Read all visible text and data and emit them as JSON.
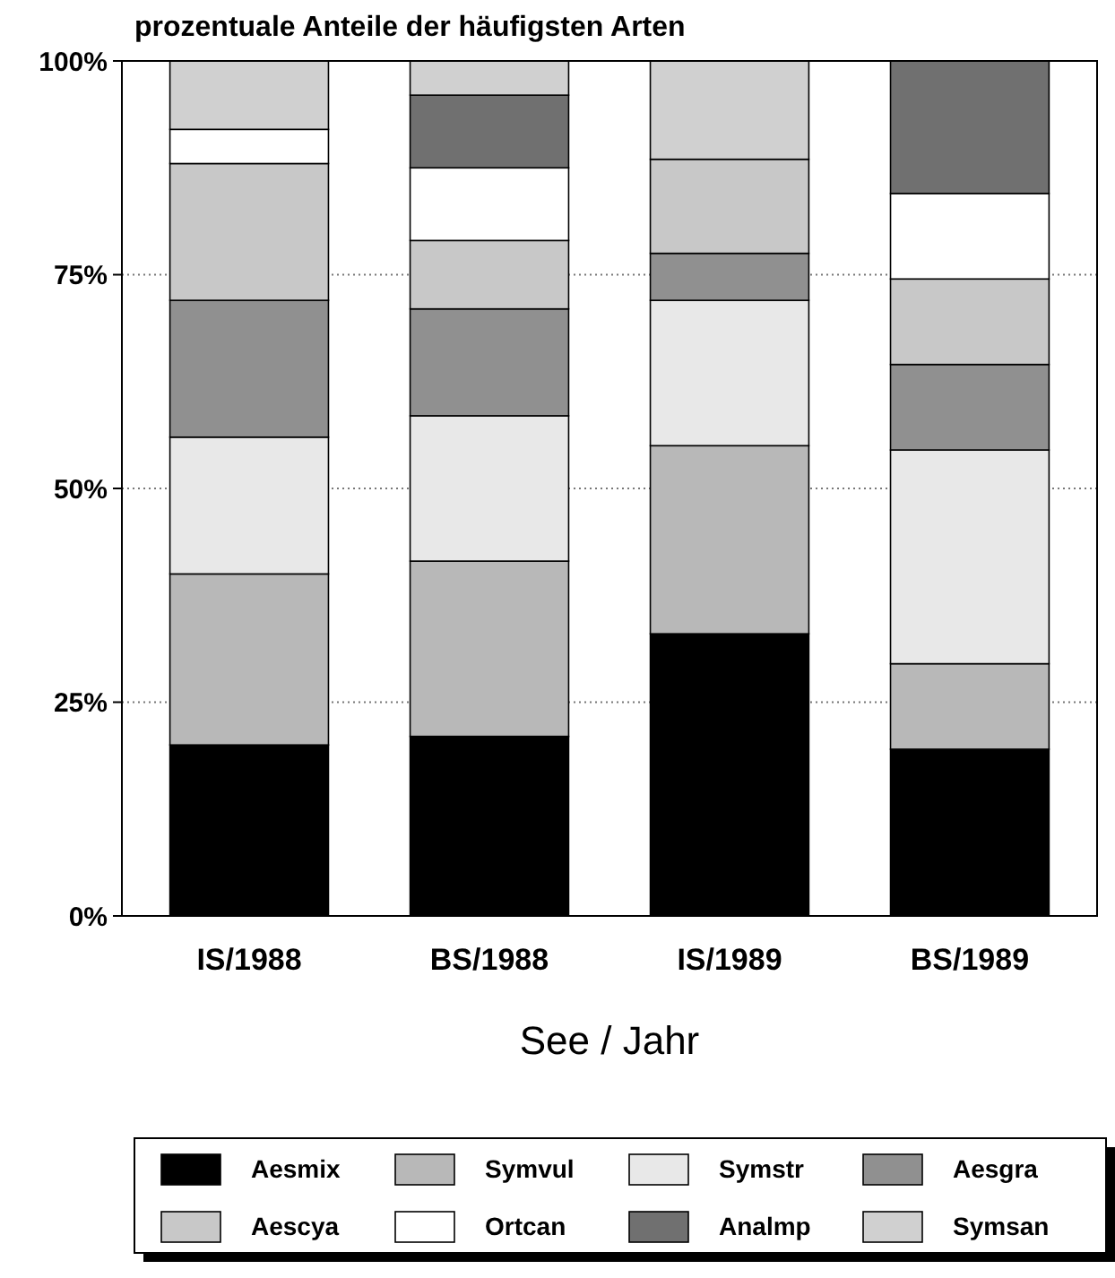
{
  "chart_data": {
    "type": "bar",
    "stacked": true,
    "title": "prozentuale Anteile der häufigsten Arten",
    "xlabel": "See / Jahr",
    "categories": [
      "IS/1988",
      "BS/1988",
      "IS/1989",
      "BS/1989"
    ],
    "series": [
      {
        "name": "Aesmix",
        "color": "#000000",
        "values": [
          20,
          21,
          33,
          19.5
        ]
      },
      {
        "name": "Symvul",
        "color": "#b8b8b8",
        "values": [
          20,
          20.5,
          22,
          10
        ]
      },
      {
        "name": "Symstr",
        "color": "#e8e8e8",
        "values": [
          16,
          17,
          17,
          25
        ]
      },
      {
        "name": "Aesgra",
        "color": "#909090",
        "values": [
          16,
          12.5,
          5.5,
          10
        ]
      },
      {
        "name": "Aescya",
        "color": "#c8c8c8",
        "values": [
          16,
          8,
          11,
          10
        ]
      },
      {
        "name": "Ortcan",
        "color": "#ffffff",
        "values": [
          4,
          8.5,
          0,
          10
        ]
      },
      {
        "name": "Analmp",
        "color": "#707070",
        "values": [
          0,
          8.5,
          0,
          15.5
        ]
      },
      {
        "name": "Symsan",
        "color": "#d0d0d0",
        "values": [
          8,
          4,
          11.5,
          0
        ]
      }
    ],
    "ylim": [
      0,
      100
    ],
    "yticks": [
      {
        "value": 0,
        "label": "0%"
      },
      {
        "value": 25,
        "label": "25%"
      },
      {
        "value": 50,
        "label": "50%"
      },
      {
        "value": 75,
        "label": "75%"
      },
      {
        "value": 100,
        "label": "100%"
      }
    ],
    "grid": "y",
    "legend": "bottom"
  }
}
